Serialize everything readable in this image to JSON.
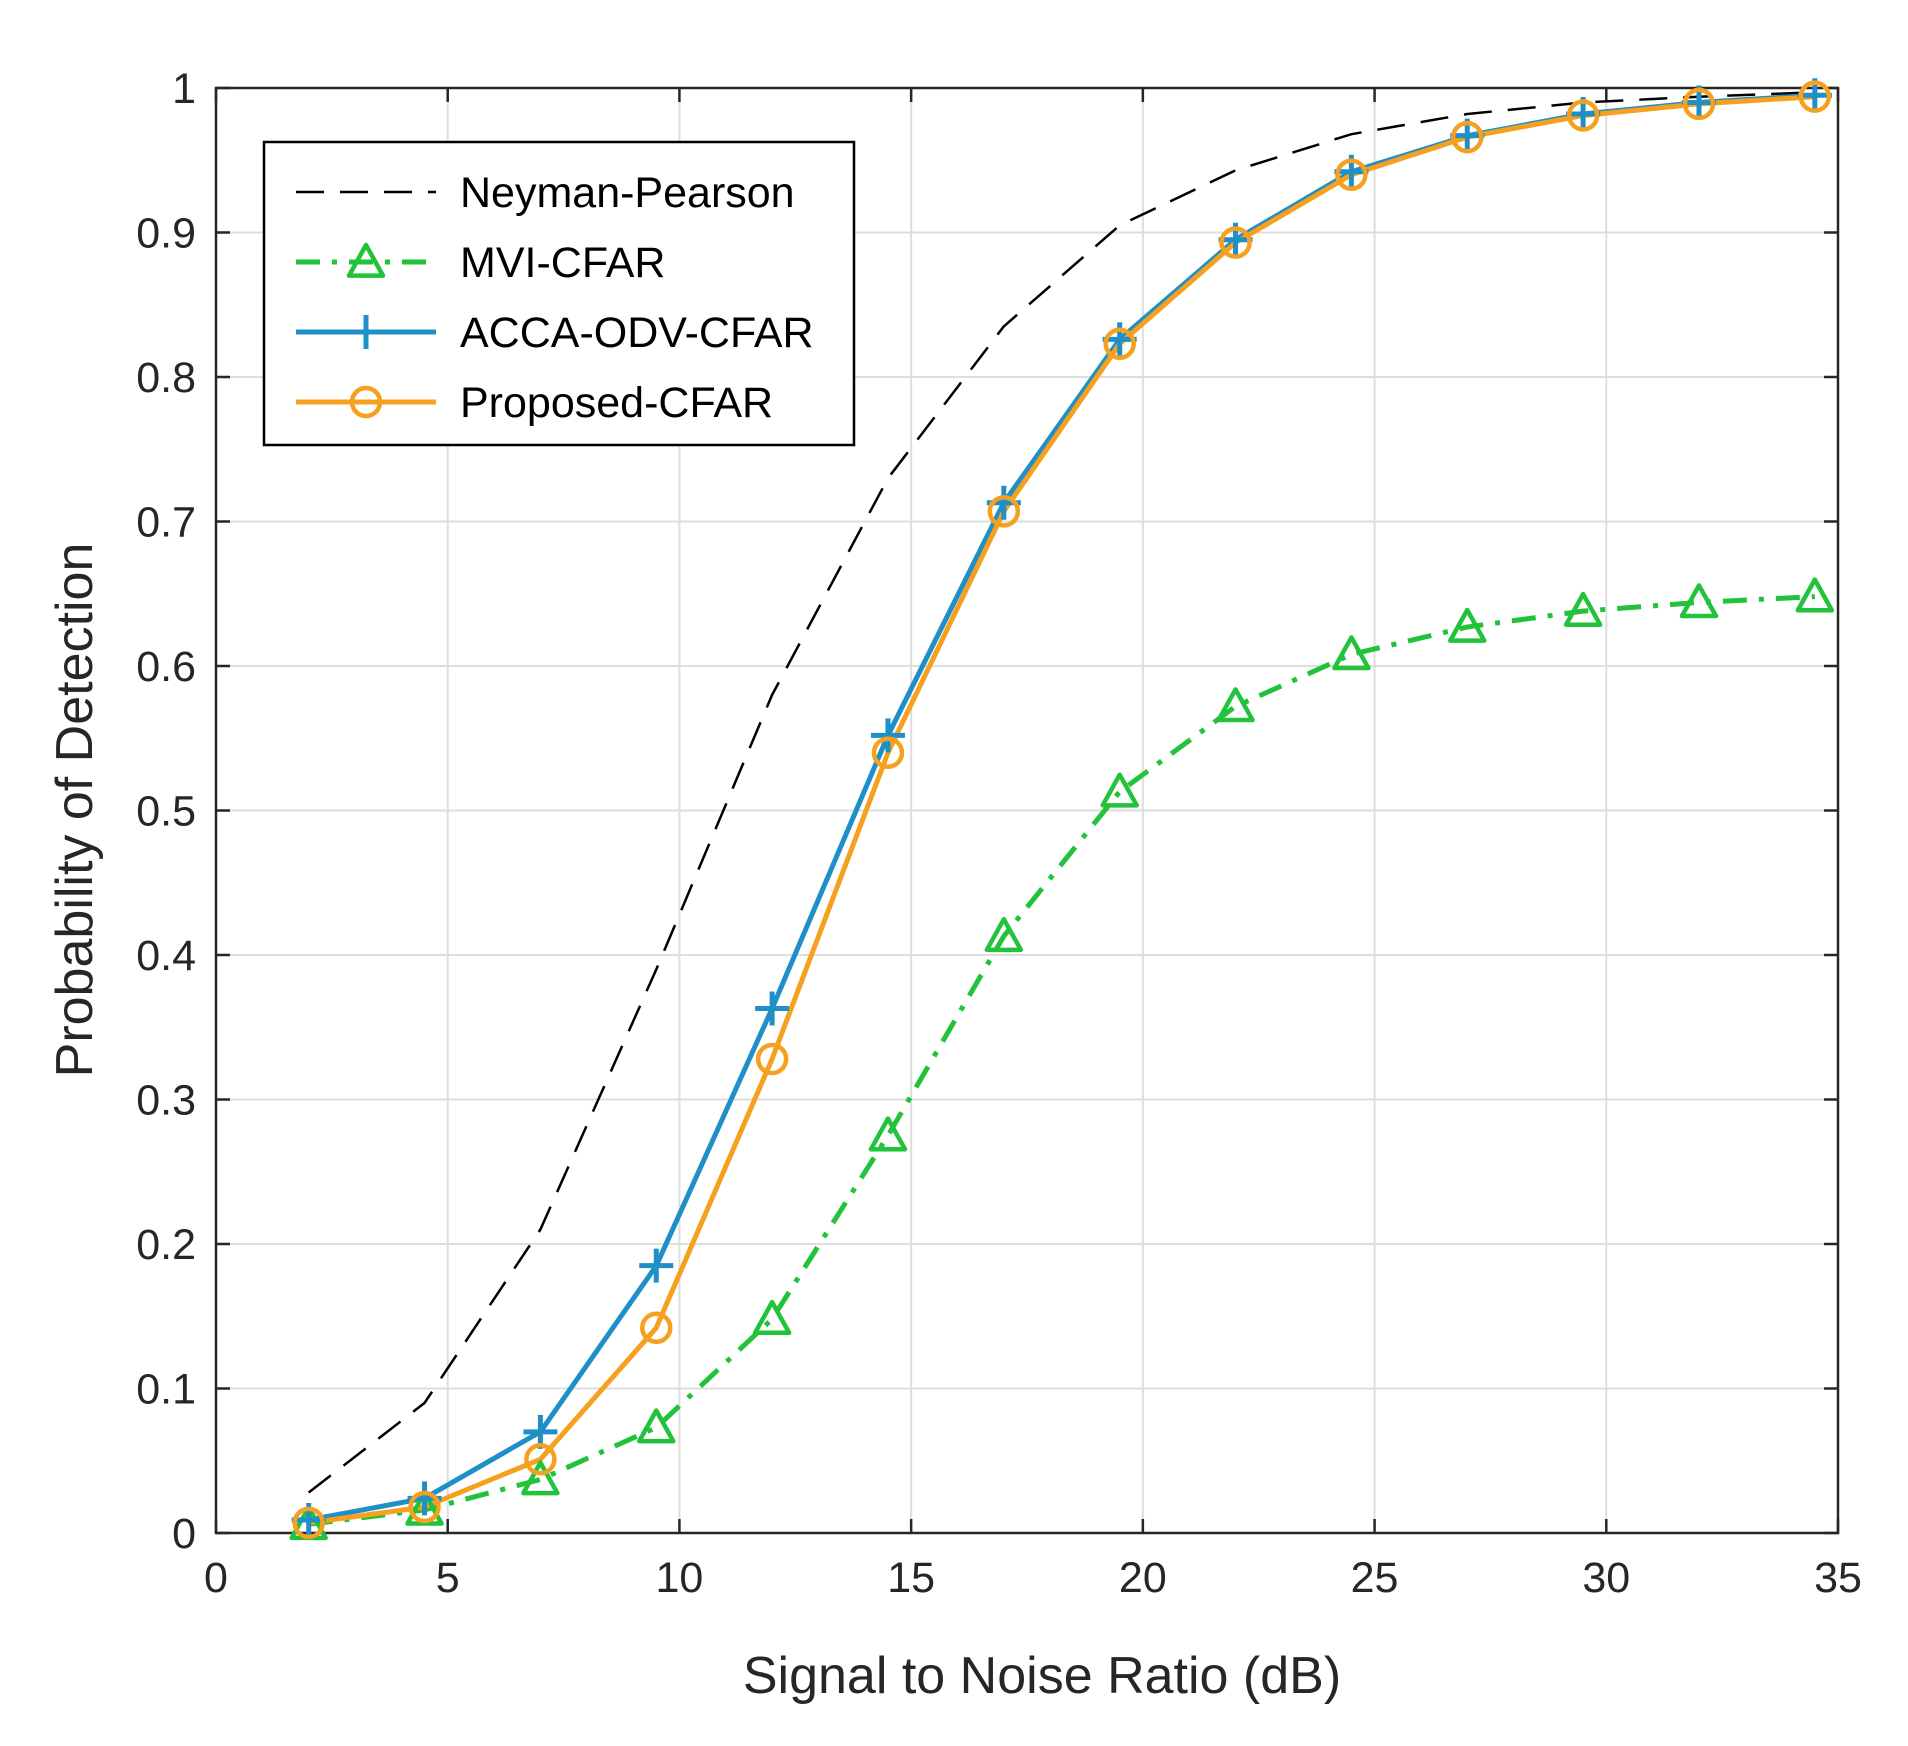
{
  "chart_data": {
    "type": "line",
    "title": "",
    "xlabel": "Signal to Noise Ratio (dB)",
    "ylabel": "Probability of Detection",
    "xlim": [
      0,
      35
    ],
    "ylim": [
      0,
      1
    ],
    "xticks": [
      0,
      5,
      10,
      15,
      20,
      25,
      30,
      35
    ],
    "yticks": [
      0,
      0.1,
      0.2,
      0.3,
      0.4,
      0.5,
      0.6,
      0.7,
      0.8,
      0.9,
      1
    ],
    "xtick_labels": [
      "0",
      "5",
      "10",
      "15",
      "20",
      "25",
      "30",
      "35"
    ],
    "ytick_labels": [
      "0",
      "0.1",
      "0.2",
      "0.3",
      "0.4",
      "0.5",
      "0.6",
      "0.7",
      "0.8",
      "0.9",
      "1"
    ],
    "grid": true,
    "legend_position": "top-left",
    "x": [
      2,
      4.5,
      7,
      9.5,
      12,
      14.5,
      17,
      19.5,
      22,
      24.5,
      27,
      29.5,
      32,
      34.5
    ],
    "series": [
      {
        "name": "Neyman-Pearson",
        "color": "#000000",
        "style": "dashed",
        "marker": "none",
        "values": [
          0.028,
          0.09,
          0.21,
          0.39,
          0.58,
          0.73,
          0.835,
          0.905,
          0.943,
          0.968,
          0.982,
          0.99,
          0.994,
          0.997
        ]
      },
      {
        "name": "MVI-CFAR",
        "color": "#22c23a",
        "style": "dashdot",
        "marker": "triangle",
        "values": [
          0.006,
          0.016,
          0.037,
          0.073,
          0.148,
          0.275,
          0.413,
          0.513,
          0.572,
          0.608,
          0.627,
          0.638,
          0.644,
          0.648
        ]
      },
      {
        "name": "ACCA-ODV-CFAR",
        "color": "#1f8fc8",
        "style": "solid",
        "marker": "plus",
        "values": [
          0.009,
          0.024,
          0.07,
          0.185,
          0.363,
          0.552,
          0.713,
          0.826,
          0.895,
          0.942,
          0.967,
          0.982,
          0.99,
          0.995
        ]
      },
      {
        "name": "Proposed-CFAR",
        "color": "#f5a11f",
        "style": "solid",
        "marker": "circle",
        "values": [
          0.007,
          0.018,
          0.051,
          0.142,
          0.328,
          0.54,
          0.707,
          0.823,
          0.893,
          0.94,
          0.966,
          0.981,
          0.989,
          0.994
        ]
      }
    ]
  }
}
